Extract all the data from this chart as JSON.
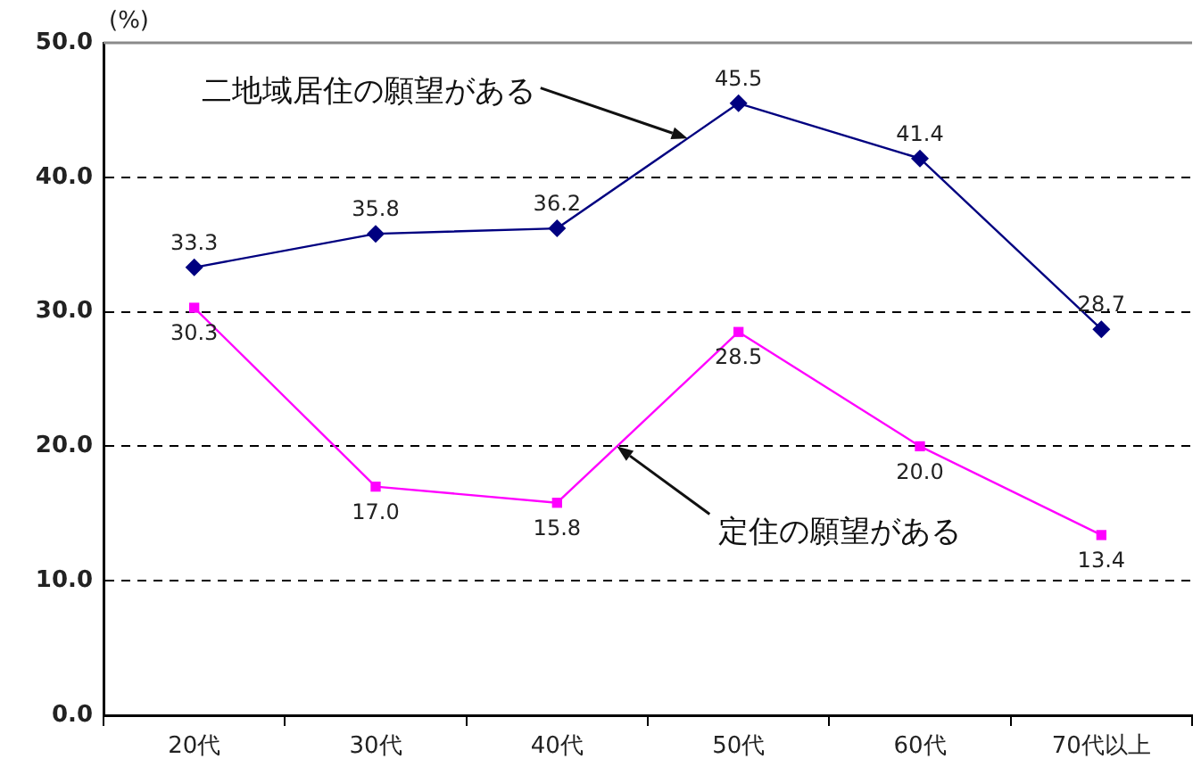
{
  "chart_data": {
    "type": "line",
    "ylabel": "(%)",
    "categories": [
      "20代",
      "30代",
      "40代",
      "50代",
      "60代",
      "70代以上"
    ],
    "series": [
      {
        "name": "二地域居住の願望がある",
        "color": "#000080",
        "marker": "diamond",
        "values": [
          33.3,
          35.8,
          36.2,
          45.5,
          41.4,
          28.7
        ],
        "value_labels": [
          "33.3",
          "35.8",
          "36.2",
          "45.5",
          "41.4",
          "28.7"
        ]
      },
      {
        "name": "定住の願望がある",
        "color": "#ff00ff",
        "marker": "square",
        "values": [
          30.3,
          17.0,
          15.8,
          28.5,
          20.0,
          13.4
        ],
        "value_labels": [
          "30.3",
          "17.0",
          "15.8",
          "28.5",
          "20.0",
          "13.4"
        ]
      }
    ],
    "ylim": [
      0,
      50
    ],
    "yticks": [
      {
        "value": 0,
        "label": "0.0"
      },
      {
        "value": 10,
        "label": "10.0"
      },
      {
        "value": 20,
        "label": "20.0"
      },
      {
        "value": 30,
        "label": "30.0"
      },
      {
        "value": 40,
        "label": "40.0"
      },
      {
        "value": 50,
        "label": "50.0"
      }
    ],
    "grid": "y",
    "legend": false
  }
}
